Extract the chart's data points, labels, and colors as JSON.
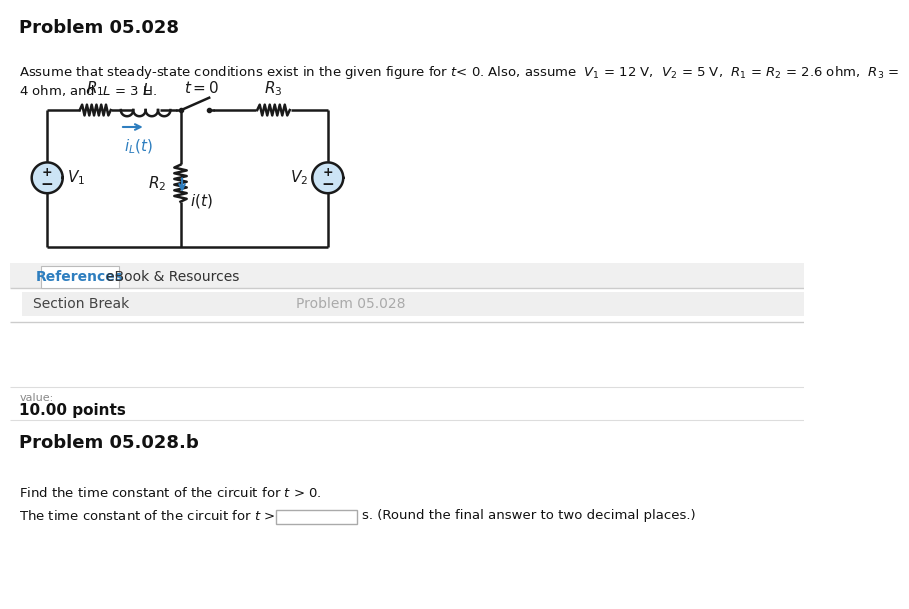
{
  "title": "Problem 05.028",
  "references_tab": "References",
  "ebook_tab": "eBook & Resources",
  "section_break": "Section Break",
  "problem_label": "Problem 05.028",
  "value_label": "value:",
  "points": "10.00 points",
  "problem_b": "Problem 05.028.b",
  "find_text": "Find the time constant of the circuit for t > 0.",
  "constant_prefix": "The time constant of the circuit for t > 0 is τ =",
  "constant_suffix": "s. (Round the final answer to two decimal places.)",
  "bg_color": "#ffffff",
  "page_bg": "#f0f0f0",
  "text_color": "#333333",
  "tab_color": "#2e7ebf",
  "section_bg": "#f0f0f0",
  "circuit_color": "#1a1a1a",
  "arrow_color": "#2e7ebf",
  "title_fontsize": 13,
  "body_fontsize": 9.5,
  "circuit_lw": 1.8
}
